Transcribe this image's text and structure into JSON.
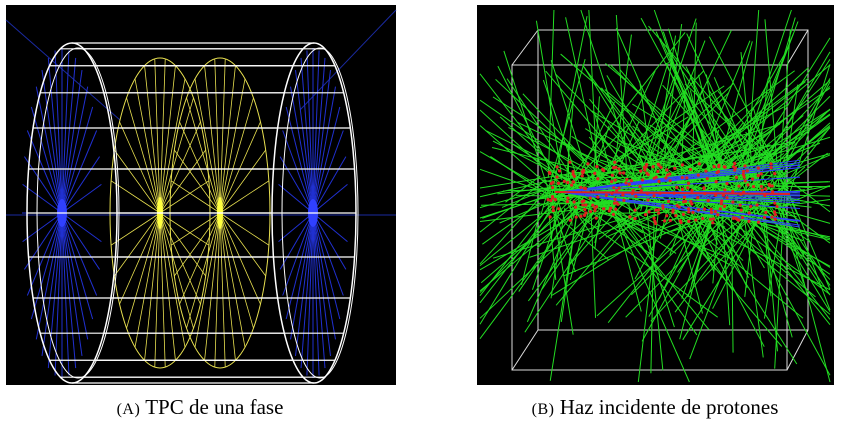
{
  "figure": {
    "panels": [
      {
        "label": "(A)",
        "caption": "TPC de una fase"
      },
      {
        "label": "(B)",
        "caption": "Haz incidente de protones"
      }
    ]
  }
}
